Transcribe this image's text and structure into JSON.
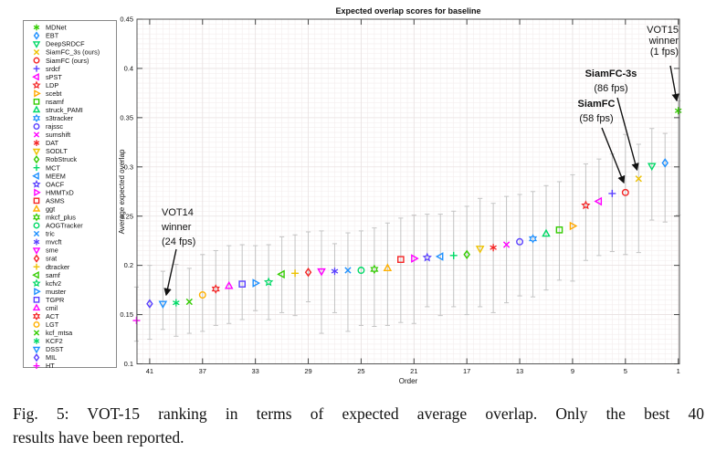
{
  "figure": {
    "caption_line1": "Fig. 5: VOT-15 ranking in terms of expected average overlap. Only the best 40",
    "caption_line2": "results have been reported."
  },
  "chart_data": {
    "type": "scatter",
    "title": "Expected overlap scores for baseline",
    "xlabel": "Order",
    "ylabel": "Average expected overlap",
    "xlim": [
      42.5,
      0.5
    ],
    "ylim": [
      0.1,
      0.45
    ],
    "x_axis_reversed": true,
    "x_ticks": [
      41,
      37,
      33,
      29,
      25,
      21,
      17,
      13,
      9,
      5,
      1
    ],
    "y_ticks": [
      0.1,
      0.15,
      0.2,
      0.25,
      0.3,
      0.35,
      0.4,
      0.45
    ],
    "y_tick_labels": [
      "0.1",
      "0.15",
      "0.2",
      "0.25",
      "0.3",
      "0.35",
      "0.4",
      "0.45"
    ],
    "grid": "minor",
    "legend_position": "outside-left",
    "error_bar_color": "#c4c4c4",
    "points": [
      {
        "rank": 1,
        "name": "MDNet",
        "label": "MDNet",
        "marker": "asterisk6",
        "color": "#33cc00",
        "value": 0.357,
        "err_lo": 0.251,
        "err_hi": 0.367
      },
      {
        "rank": 2,
        "name": "EBT",
        "label": "EBT",
        "marker": "diamond",
        "color": "#1e90ff",
        "value": 0.304,
        "err_lo": 0.244,
        "err_hi": 0.334
      },
      {
        "rank": 3,
        "name": "DeepSRDCF",
        "label": "DeepSRDCF",
        "marker": "tri-down",
        "color": "#00d966",
        "value": 0.301,
        "err_lo": 0.246,
        "err_hi": 0.339
      },
      {
        "rank": 4,
        "name": "SiamFC_3s",
        "label": "SiamFC_3s (ours)",
        "marker": "x",
        "color": "#edc100",
        "value": 0.288,
        "err_lo": 0.213,
        "err_hi": 0.323
      },
      {
        "rank": 5,
        "name": "SiamFC",
        "label": "SiamFC (ours)",
        "marker": "circle",
        "color": "#f42525",
        "value": 0.274,
        "err_lo": 0.211,
        "err_hi": 0.333
      },
      {
        "rank": 6,
        "name": "srdcf",
        "label": "srdcf",
        "marker": "plus",
        "color": "#5a40ff",
        "value": 0.273,
        "err_lo": 0.214,
        "err_hi": 0.313
      },
      {
        "rank": 7,
        "name": "sPST",
        "label": "sPST",
        "marker": "tri-left",
        "color": "#ff00ff",
        "value": 0.265,
        "err_lo": 0.21,
        "err_hi": 0.308
      },
      {
        "rank": 8,
        "name": "LDP",
        "label": "LDP",
        "marker": "star5",
        "color": "#f42525",
        "value": 0.261,
        "err_lo": 0.205,
        "err_hi": 0.303
      },
      {
        "rank": 9,
        "name": "scebt",
        "label": "scebt",
        "marker": "tri-right",
        "color": "#ffa800",
        "value": 0.24,
        "err_lo": 0.184,
        "err_hi": 0.292
      },
      {
        "rank": 10,
        "name": "nsamf",
        "label": "nsamf",
        "marker": "square",
        "color": "#33cc00",
        "value": 0.236,
        "err_lo": 0.185,
        "err_hi": 0.285
      },
      {
        "rank": 11,
        "name": "struck_PAMI",
        "label": "struck_PAMI",
        "marker": "tri-up",
        "color": "#00d966",
        "value": 0.232,
        "err_lo": 0.175,
        "err_hi": 0.281
      },
      {
        "rank": 12,
        "name": "s3tracker",
        "label": "s3tracker",
        "marker": "hexagram",
        "color": "#1e90ff",
        "value": 0.227,
        "err_lo": 0.168,
        "err_hi": 0.275
      },
      {
        "rank": 13,
        "name": "rajssc",
        "label": "rajssc",
        "marker": "circle",
        "color": "#5a40ff",
        "value": 0.224,
        "err_lo": 0.169,
        "err_hi": 0.272
      },
      {
        "rank": 14,
        "name": "sumshift",
        "label": "sumshift",
        "marker": "x",
        "color": "#ff00ff",
        "value": 0.221,
        "err_lo": 0.162,
        "err_hi": 0.27
      },
      {
        "rank": 15,
        "name": "DAT",
        "label": "DAT",
        "marker": "asterisk6",
        "color": "#f42525",
        "value": 0.218,
        "err_lo": 0.152,
        "err_hi": 0.263
      },
      {
        "rank": 16,
        "name": "SODLT",
        "label": "SODLT",
        "marker": "tri-down",
        "color": "#edc100",
        "value": 0.217,
        "err_lo": 0.158,
        "err_hi": 0.268
      },
      {
        "rank": 17,
        "name": "RobStruck",
        "label": "RobStruck",
        "marker": "diamond",
        "color": "#33cc00",
        "value": 0.211,
        "err_lo": 0.15,
        "err_hi": 0.26
      },
      {
        "rank": 18,
        "name": "MCT",
        "label": "MCT",
        "marker": "plus",
        "color": "#00d966",
        "value": 0.21,
        "err_lo": 0.158,
        "err_hi": 0.255
      },
      {
        "rank": 19,
        "name": "MEEM",
        "label": "MEEM",
        "marker": "tri-left",
        "color": "#1e90ff",
        "value": 0.209,
        "err_lo": 0.149,
        "err_hi": 0.252
      },
      {
        "rank": 20,
        "name": "OACF",
        "label": "OACF",
        "marker": "star5",
        "color": "#5a40ff",
        "value": 0.208,
        "err_lo": 0.158,
        "err_hi": 0.252
      },
      {
        "rank": 21,
        "name": "HMMTxD",
        "label": "HMMTxD",
        "marker": "tri-right",
        "color": "#ff00ff",
        "value": 0.207,
        "err_lo": 0.141,
        "err_hi": 0.251
      },
      {
        "rank": 22,
        "name": "ASMS",
        "label": "ASMS",
        "marker": "square",
        "color": "#f42525",
        "value": 0.206,
        "err_lo": 0.142,
        "err_hi": 0.248
      },
      {
        "rank": 23,
        "name": "ggt",
        "label": "ggt",
        "marker": "tri-up",
        "color": "#ffb000",
        "value": 0.197,
        "err_lo": 0.139,
        "err_hi": 0.243
      },
      {
        "rank": 24,
        "name": "mkcf_plus",
        "label": "mkcf_plus",
        "marker": "hexagram",
        "color": "#33cc00",
        "value": 0.196,
        "err_lo": 0.138,
        "err_hi": 0.238
      },
      {
        "rank": 25,
        "name": "AOGTracker",
        "label": "AOGTracker",
        "marker": "circle",
        "color": "#00d966",
        "value": 0.195,
        "err_lo": 0.139,
        "err_hi": 0.235
      },
      {
        "rank": 26,
        "name": "tric",
        "label": "tric",
        "marker": "x",
        "color": "#1e90ff",
        "value": 0.195,
        "err_lo": 0.133,
        "err_hi": 0.233
      },
      {
        "rank": 27,
        "name": "mvcft",
        "label": "mvcft",
        "marker": "asterisk6",
        "color": "#5a40ff",
        "value": 0.194,
        "err_lo": 0.152,
        "err_hi": 0.222
      },
      {
        "rank": 28,
        "name": "sme",
        "label": "sme",
        "marker": "tri-down",
        "color": "#ff00ff",
        "value": 0.194,
        "err_lo": 0.131,
        "err_hi": 0.235
      },
      {
        "rank": 29,
        "name": "srat",
        "label": "srat",
        "marker": "diamond",
        "color": "#f42525",
        "value": 0.193,
        "err_lo": 0.163,
        "err_hi": 0.234
      },
      {
        "rank": 30,
        "name": "dtracker",
        "label": "dtracker",
        "marker": "plus",
        "color": "#edc100",
        "value": 0.192,
        "err_lo": 0.149,
        "err_hi": 0.231
      },
      {
        "rank": 31,
        "name": "samf",
        "label": "samf",
        "marker": "tri-left",
        "color": "#33cc00",
        "value": 0.191,
        "err_lo": 0.152,
        "err_hi": 0.229
      },
      {
        "rank": 32,
        "name": "kcfv2",
        "label": "kcfv2",
        "marker": "star5",
        "color": "#00d966",
        "value": 0.183,
        "err_lo": 0.145,
        "err_hi": 0.221
      },
      {
        "rank": 33,
        "name": "muster",
        "label": "muster",
        "marker": "tri-right",
        "color": "#1e90ff",
        "value": 0.182,
        "err_lo": 0.154,
        "err_hi": 0.22
      },
      {
        "rank": 34,
        "name": "TGPR",
        "label": "TGPR",
        "marker": "square",
        "color": "#5a40ff",
        "value": 0.181,
        "err_lo": 0.145,
        "err_hi": 0.221
      },
      {
        "rank": 35,
        "name": "cmil",
        "label": "cmil",
        "marker": "tri-up",
        "color": "#ff00ff",
        "value": 0.179,
        "err_lo": 0.141,
        "err_hi": 0.22
      },
      {
        "rank": 36,
        "name": "ACT",
        "label": "ACT",
        "marker": "hexagram",
        "color": "#f42525",
        "value": 0.176,
        "err_lo": 0.139,
        "err_hi": 0.215
      },
      {
        "rank": 37,
        "name": "LGT",
        "label": "LGT",
        "marker": "circle",
        "color": "#ffb000",
        "value": 0.17,
        "err_lo": 0.133,
        "err_hi": 0.211
      },
      {
        "rank": 38,
        "name": "kcf_mtsa",
        "label": "kcf_mtsa",
        "marker": "x",
        "color": "#33cc00",
        "value": 0.163,
        "err_lo": 0.131,
        "err_hi": 0.197
      },
      {
        "rank": 39,
        "name": "KCF2",
        "label": "KCF2",
        "marker": "asterisk6",
        "color": "#00d966",
        "value": 0.162,
        "err_lo": 0.128,
        "err_hi": 0.201
      },
      {
        "rank": 40,
        "name": "DSST",
        "label": "DSST",
        "marker": "tri-down",
        "color": "#1e90ff",
        "value": 0.161,
        "err_lo": 0.135,
        "err_hi": 0.194
      },
      {
        "rank": 41,
        "name": "MIL",
        "label": "MIL",
        "marker": "diamond",
        "color": "#5a40ff",
        "value": 0.161,
        "err_lo": 0.125,
        "err_hi": 0.2
      },
      {
        "rank": 42,
        "name": "HT",
        "label": "HT",
        "marker": "plus",
        "color": "#ff00ff",
        "value": 0.144,
        "err_lo": 0.123,
        "err_hi": 0.178
      }
    ],
    "annotations": [
      {
        "id": "vot15-winner",
        "lines": [
          "VOT15",
          "winner",
          "(1 fps)"
        ],
        "bold_lines": [],
        "target": "MDNet"
      },
      {
        "id": "siamfc-3s",
        "lines": [
          "SiamFC-3s",
          "(86 fps)"
        ],
        "bold_lines": [
          0
        ],
        "target": "SiamFC_3s"
      },
      {
        "id": "siamfc",
        "lines": [
          "SiamFC",
          "(58 fps)"
        ],
        "bold_lines": [
          0
        ],
        "target": "SiamFC"
      },
      {
        "id": "vot14-winner",
        "lines": [
          "VOT14",
          "winner",
          "(24 fps)"
        ],
        "bold_lines": [],
        "target": "DSST"
      }
    ]
  }
}
